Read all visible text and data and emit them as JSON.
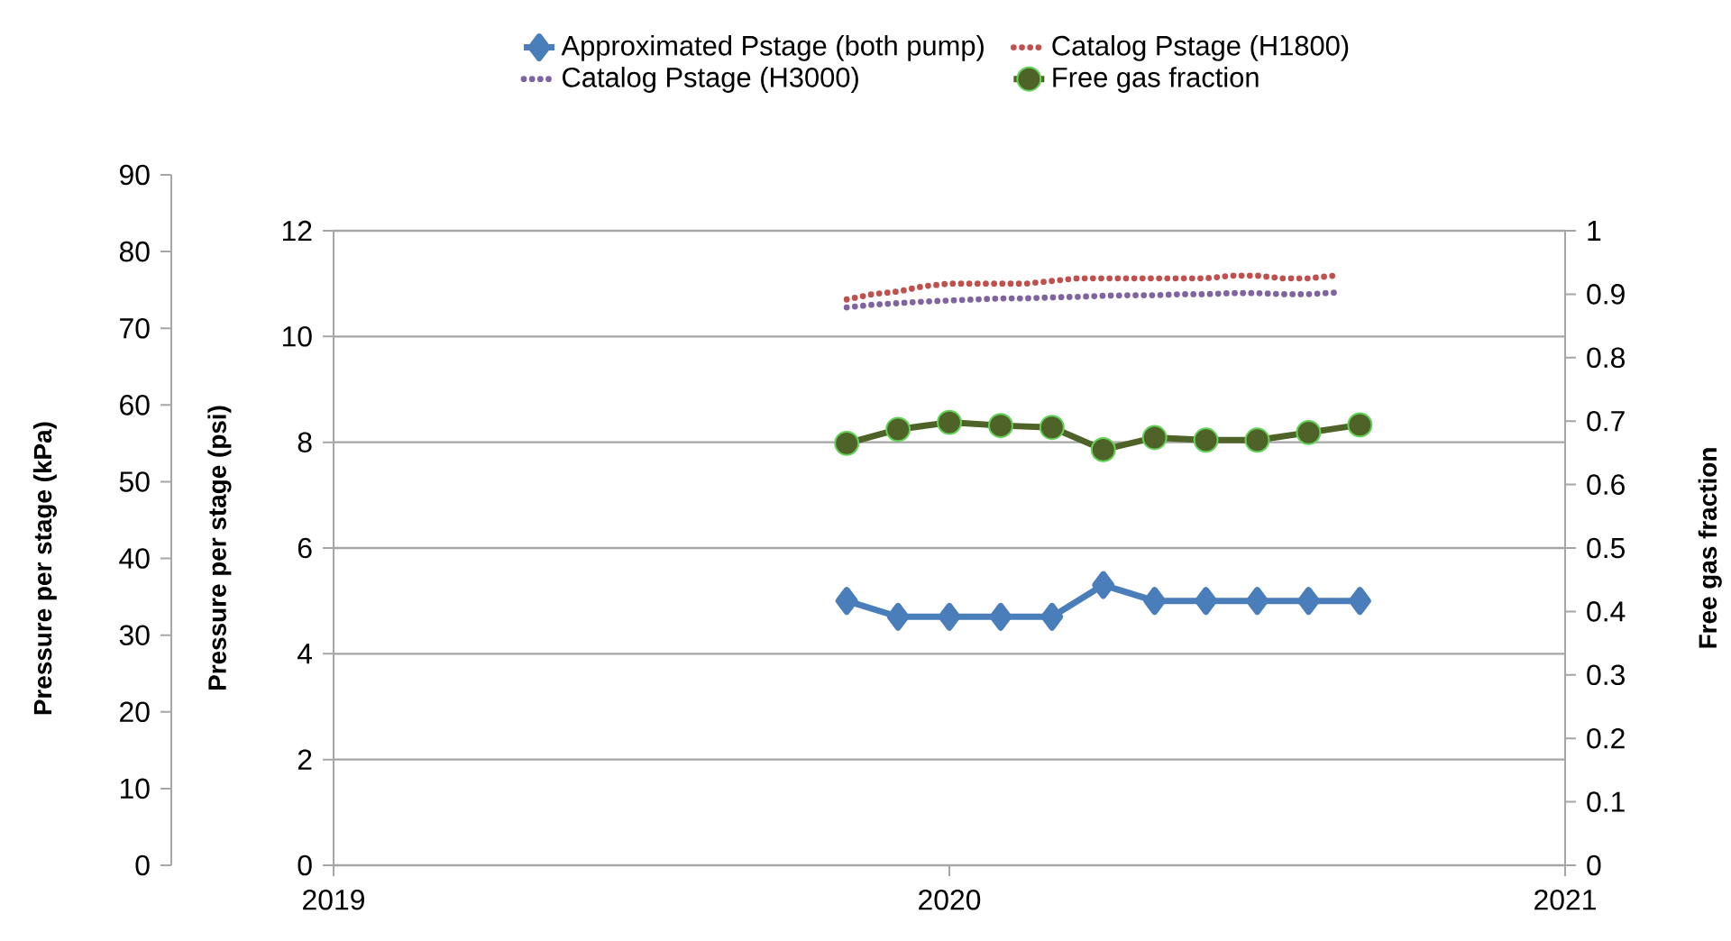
{
  "chart_data": {
    "type": "line",
    "ylabel": "Pressure per stage (psi)",
    "y2label": "Free gas fraction",
    "y3label": "Pressure per stage (kPa)",
    "xlim": [
      "2019",
      "2021"
    ],
    "xticks": [
      "2019",
      "2020",
      "2021"
    ],
    "ylim": [
      0,
      12
    ],
    "yticks": [
      0,
      2,
      4,
      6,
      8,
      10,
      12
    ],
    "y2lim": [
      0,
      1
    ],
    "y2ticks": [
      0,
      0.1,
      0.2,
      0.3,
      0.4,
      0.5,
      0.6,
      0.7,
      0.8,
      0.9,
      1
    ],
    "y3lim": [
      0,
      90
    ],
    "y3ticks": [
      0,
      10,
      20,
      30,
      40,
      50,
      60,
      70,
      80,
      90
    ],
    "grid": "y",
    "legend": "top",
    "series": [
      {
        "name": "Approximated Pstage (both pump)",
        "color": "#4a7ebb",
        "marker": "diamond",
        "line_style": "solid",
        "x": [
          "2019-11",
          "2019-12",
          "2020-01",
          "2020-02",
          "2020-03",
          "2020-04",
          "2020-05",
          "2020-06",
          "2020-07",
          "2020-08",
          "2020-09"
        ],
        "values": [
          5.0,
          4.7,
          4.7,
          4.7,
          4.7,
          5.3,
          5.0,
          5.0,
          5.0,
          5.0,
          5.0
        ]
      },
      {
        "name": "Catalog Pstage (H1800)",
        "color": "#c0504d",
        "marker": "none",
        "line_style": "dotted",
        "x": [
          "2019-11-01",
          "2019-11-16",
          "2019-12-01",
          "2019-12-16",
          "2020-01-01",
          "2020-01-16",
          "2020-02-01",
          "2020-02-16",
          "2020-03-01",
          "2020-03-16",
          "2020-04-01",
          "2020-04-16",
          "2020-05-01",
          "2020-05-16",
          "2020-06-01",
          "2020-06-16",
          "2020-07-01",
          "2020-07-16",
          "2020-08-01",
          "2020-08-16"
        ],
        "values": [
          10.7,
          10.8,
          10.85,
          10.95,
          11.0,
          11.0,
          11.0,
          11.0,
          11.05,
          11.1,
          11.1,
          11.1,
          11.1,
          11.1,
          11.1,
          11.15,
          11.15,
          11.1,
          11.1,
          11.15
        ]
      },
      {
        "name": "Catalog Pstage (H3000)",
        "color": "#8064a2",
        "marker": "none",
        "line_style": "dotted",
        "x": [
          "2019-11-01",
          "2019-11-16",
          "2019-12-01",
          "2019-12-16",
          "2020-01-01",
          "2020-01-16",
          "2020-02-01",
          "2020-02-16",
          "2020-03-01",
          "2020-03-16",
          "2020-04-01",
          "2020-04-16",
          "2020-05-01",
          "2020-05-16",
          "2020-06-01",
          "2020-06-16",
          "2020-07-01",
          "2020-07-16",
          "2020-08-01",
          "2020-08-16"
        ],
        "values": [
          10.55,
          10.6,
          10.63,
          10.66,
          10.68,
          10.7,
          10.72,
          10.72,
          10.74,
          10.75,
          10.77,
          10.78,
          10.78,
          10.8,
          10.8,
          10.82,
          10.82,
          10.8,
          10.8,
          10.83
        ]
      },
      {
        "name": "Free gas fraction",
        "color": "#4f6228",
        "marker": "circle",
        "line_style": "solid",
        "axis": "y2",
        "x": [
          "2019-11",
          "2019-12",
          "2020-01",
          "2020-02",
          "2020-03",
          "2020-04",
          "2020-05",
          "2020-06",
          "2020-07",
          "2020-08",
          "2020-09"
        ],
        "values": [
          0.665,
          0.687,
          0.698,
          0.693,
          0.69,
          0.655,
          0.674,
          0.67,
          0.67,
          0.682,
          0.694
        ]
      }
    ]
  }
}
